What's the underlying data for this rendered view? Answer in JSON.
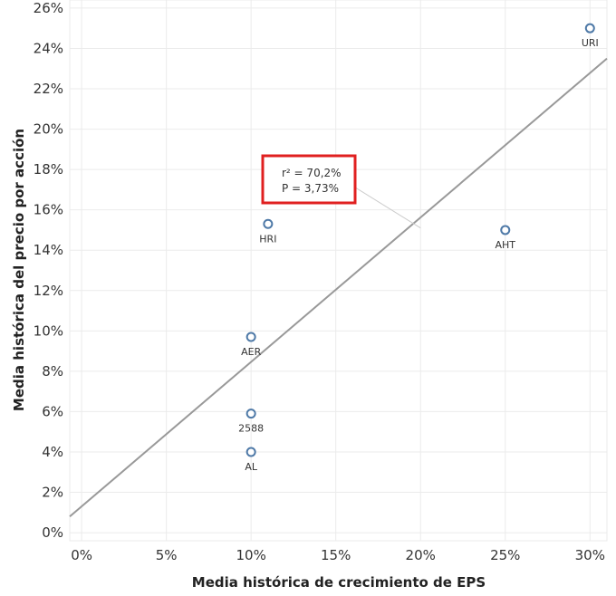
{
  "chart_data": {
    "type": "scatter",
    "xlabel": "Media histórica de crecimiento de EPS",
    "ylabel": "Media histórica del precio por acción",
    "xlim": [
      -0.007,
      0.31
    ],
    "ylim": [
      -0.004,
      0.264
    ],
    "x_ticks": [
      0,
      0.05,
      0.1,
      0.15,
      0.2,
      0.25,
      0.3
    ],
    "x_tick_labels": [
      "0%",
      "5%",
      "10%",
      "15%",
      "20%",
      "25%",
      "30%"
    ],
    "y_ticks": [
      0,
      0.02,
      0.04,
      0.06,
      0.08,
      0.1,
      0.12,
      0.14,
      0.16,
      0.18,
      0.2,
      0.22,
      0.24,
      0.26
    ],
    "y_tick_labels": [
      "0%",
      "2%",
      "4%",
      "6%",
      "8%",
      "10%",
      "12%",
      "14%",
      "16%",
      "18%",
      "20%",
      "22%",
      "24%",
      "26%"
    ],
    "grid": true,
    "points": [
      {
        "label": "URI",
        "x": 0.3,
        "y": 0.25
      },
      {
        "label": "HRI",
        "x": 0.11,
        "y": 0.153
      },
      {
        "label": "AHT",
        "x": 0.25,
        "y": 0.15
      },
      {
        "label": "AER",
        "x": 0.1,
        "y": 0.097
      },
      {
        "label": "2588",
        "x": 0.1,
        "y": 0.059
      },
      {
        "label": "AL",
        "x": 0.1,
        "y": 0.04
      }
    ],
    "trend_line": {
      "x": [
        -0.007,
        0.31
      ],
      "y": [
        0.008,
        0.235
      ]
    },
    "annotation": {
      "r2": "r² = 70,2%",
      "p": "P = 3,73%",
      "anchor": {
        "x": 0.2,
        "y": 0.151
      }
    },
    "colors": {
      "point": "#4e79a7",
      "trend": "#999999",
      "grid": "#ebebeb",
      "annotation_border": "#e02020"
    }
  }
}
